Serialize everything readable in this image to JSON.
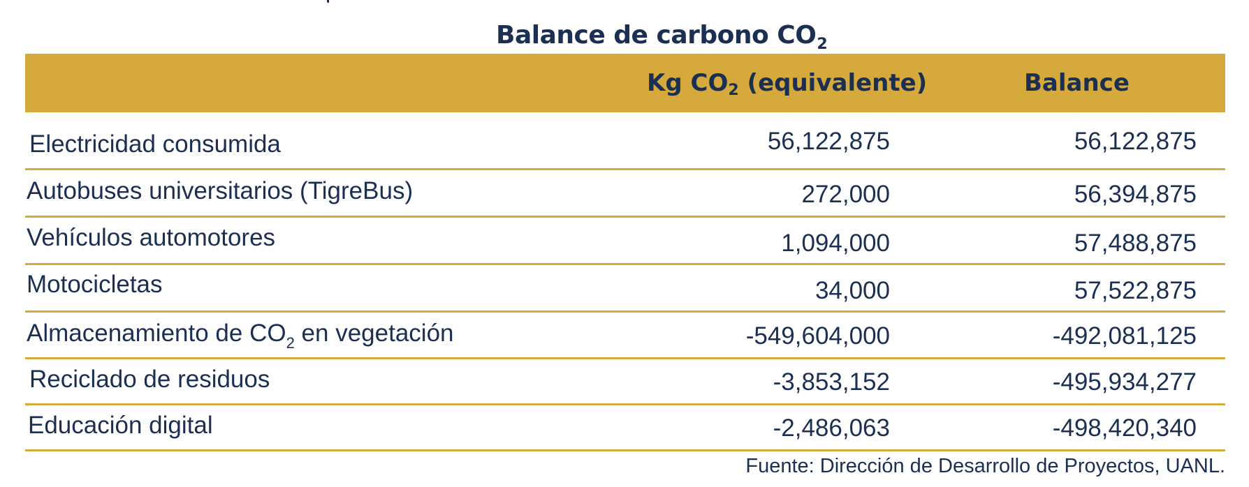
{
  "table": {
    "title_main": "Balance de carbono CO",
    "title_sub": "2",
    "header": {
      "empty_label": "",
      "kg_pre": "Kg CO",
      "kg_sub": "2",
      "kg_post": " (equivalente)",
      "balance": "Balance"
    },
    "rows": [
      {
        "label": "Electricidad consumida",
        "kg": "56,122,875",
        "balance": "56,122,875"
      },
      {
        "label": "Autobuses universitarios (TigreBus)",
        "kg": "272,000",
        "balance": "56,394,875"
      },
      {
        "label": "Vehículos automotores",
        "kg": "1,094,000",
        "balance": "57,488,875"
      },
      {
        "label": "Motocicletas",
        "kg": "34,000",
        "balance": "57,522,875"
      },
      {
        "label_pre": "Almacenamiento de CO",
        "label_sub": "2",
        "label_post": " en vegetación",
        "kg": "-549,604,000",
        "balance": "-492,081,125"
      },
      {
        "label": "Reciclado de residuos",
        "kg": "-3,853,152",
        "balance": "-495,934,277"
      },
      {
        "label": "Educación digital",
        "kg": "-2,486,063",
        "balance": "-498,420,340"
      }
    ],
    "source": "Fuente: Dirección de Desarrollo de Proyectos,  UANL."
  },
  "colors": {
    "header_bg": "#d6a93c",
    "text": "#1b2f52",
    "rule": "#d6a93c"
  }
}
